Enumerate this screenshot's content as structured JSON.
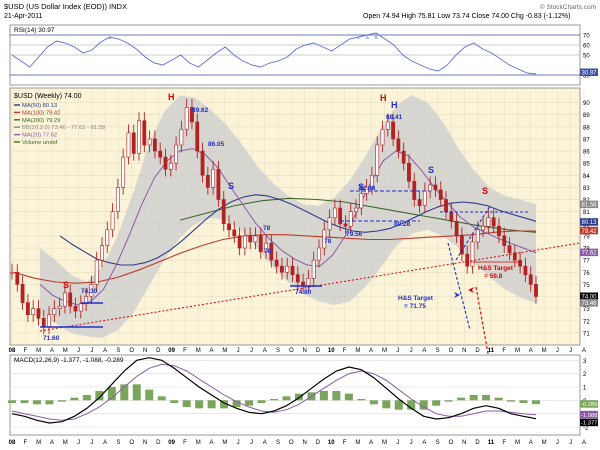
{
  "header": {
    "symbol_line": "$USD (US Dollar Index (EOD)) INDX",
    "date": "21-Apr-2011",
    "quote": "Open 74.94  High 75.81  Low 73.74  Close 74.00  Chg -0.83 (-1.12%)",
    "watermark": "© StockCharts.com"
  },
  "colors": {
    "price_bg": "#fbf4d9",
    "band_fill": "#c9c9cd",
    "price_bar": "#b22222",
    "ma50": "#2e3b8a",
    "ma100": "#c0392b",
    "ma200": "#3a6b2a",
    "ma20": "#8a5aa8",
    "rsi_line": "#5b6ed9",
    "rsi_fill": "#6f86c9",
    "macd_line": "#000000",
    "signal_line": "#8a5aa8",
    "hist": "#7aa65b",
    "annotation_red": "#e00000",
    "annotation_blue": "#1f2fd1"
  },
  "chart_data": [
    {
      "type": "line",
      "panel": "rsi",
      "legend": "RSI(14) 30.97",
      "y_ticks": [
        30,
        50,
        60,
        70
      ],
      "ylim": [
        20,
        80
      ],
      "current_value_label": "30.97",
      "series": [
        {
          "name": "RSI(14)",
          "values": [
            50,
            44,
            38,
            48,
            58,
            64,
            62,
            58,
            52,
            55,
            63,
            68,
            66,
            62,
            56,
            48,
            42,
            40,
            45,
            50,
            42,
            38,
            45,
            52,
            58,
            50,
            44,
            40,
            38,
            42,
            44,
            48,
            56,
            60,
            62,
            58,
            54,
            60,
            66,
            68,
            70,
            72,
            66,
            60,
            50,
            44,
            40,
            36,
            34,
            40,
            50,
            58,
            62,
            56,
            52,
            46,
            40,
            36,
            32,
            30.97
          ]
        }
      ]
    },
    {
      "type": "line",
      "panel": "price",
      "title": "$USD (Weekly) 74.00",
      "legend": [
        "MA(50) 80.13",
        "MA(100) 79.42",
        "MA(200) 79.29",
        "BB(20,2.0) 73.46 - 77.62 - 81.58",
        "MA(20) 77.62",
        "Volume undef"
      ],
      "y_ticks": [
        71,
        72,
        73,
        74,
        75,
        76,
        77,
        78,
        79,
        80,
        81,
        82,
        83,
        84,
        85,
        86,
        87,
        88,
        89,
        90
      ],
      "ylim": [
        70,
        91.2
      ],
      "x_tick_labels": [
        "08",
        "F",
        "M",
        "A",
        "M",
        "J",
        "J",
        "A",
        "S",
        "O",
        "N",
        "D",
        "09",
        "F",
        "M",
        "A",
        "M",
        "J",
        "J",
        "A",
        "S",
        "O",
        "N",
        "D",
        "10",
        "F",
        "M",
        "A",
        "M",
        "J",
        "J",
        "A",
        "S",
        "O",
        "N",
        "D",
        "11",
        "F",
        "M",
        "A",
        "M",
        "J",
        "J",
        "A"
      ],
      "current_value_labels": [
        "81.58",
        "80.13",
        "79.42",
        "77.62",
        "74.00",
        "73.46"
      ],
      "series": [
        {
          "name": "Price",
          "values": [
            76.0,
            75.0,
            73.5,
            72.5,
            73.0,
            72.2,
            71.5,
            72.5,
            73.0,
            73.2,
            74.3,
            73.2,
            72.8,
            73.4,
            74.0,
            75.0,
            77.0,
            78.2,
            79.5,
            81.0,
            83.0,
            85.5,
            87.5,
            85.8,
            88.5,
            86.5,
            87.0,
            86.0,
            85.5,
            84.5,
            85.0,
            86.5,
            87.8,
            89.6,
            88.4,
            86.0,
            84.0,
            83.0,
            84.5,
            82.0,
            80.0,
            79.5,
            79.0,
            78.0,
            79.0,
            78.5,
            79.0,
            77.7,
            78.4,
            77.0,
            76.5,
            76.0,
            76.5,
            75.8,
            75.2,
            74.9,
            75.5,
            77.0,
            78.0,
            79.5,
            80.5,
            81.3,
            80.0,
            79.8,
            81.0,
            81.3,
            82.5,
            83.0,
            84.0,
            86.5,
            87.8,
            88.4,
            87.0,
            86.0,
            85.0,
            83.5,
            82.0,
            81.5,
            82.7,
            83.2,
            82.8,
            82.0,
            81.0,
            80.2,
            79.0,
            77.5,
            76.5,
            78.5,
            79.5,
            79.8,
            80.5,
            79.8,
            79.0,
            78.2,
            77.6,
            77.0,
            76.5,
            75.8,
            75.0,
            74.0
          ]
        },
        {
          "name": "MA(50)",
          "values": [
            79,
            78.3,
            77.7,
            77.1,
            76.8,
            76.6,
            76.6,
            76.8,
            77.2,
            77.8,
            78.6,
            79.5,
            80.4,
            81.2,
            81.8,
            82.2,
            82.4,
            82.3,
            82.0,
            81.6,
            81.1,
            80.6,
            80.1,
            79.7,
            79.4,
            79.3,
            79.4,
            79.6,
            80,
            80.5,
            81,
            81.4,
            81.7,
            81.8,
            81.7,
            81.5,
            81.1,
            80.8,
            80.5,
            80.2
          ]
        },
        {
          "name": "MA(100)",
          "values": [
            76,
            75.5,
            75.2,
            75.1,
            75.2,
            75.6,
            76.2,
            76.9,
            77.6,
            78.2,
            78.7,
            79.0,
            79.1,
            79.1,
            79.0,
            78.9,
            78.8,
            78.7,
            78.7,
            78.8,
            78.9,
            79.0,
            79.1,
            79.3,
            79.4,
            79.4
          ]
        },
        {
          "name": "MA(200)",
          "values": [
            80.3,
            80.9,
            81.5,
            81.9,
            82.1,
            82.0,
            81.8,
            81.4,
            81.0,
            80.6,
            80.2,
            79.8,
            79.5,
            79.3
          ]
        },
        {
          "name": "MA(20)",
          "values": [
            75,
            74.1,
            73.6,
            73.3,
            73.6,
            74.6,
            76.6,
            79,
            81.6,
            83.8,
            85.2,
            86.0,
            86.2,
            85.7,
            84.6,
            83,
            81.5,
            80,
            78.8,
            77.8,
            77.1,
            76.6,
            76.5,
            77.4,
            79,
            81.2,
            83.4,
            85.2,
            86.0,
            85.6,
            84.4,
            83,
            81.8,
            80.6,
            79.8,
            79.3,
            78.8,
            78.4,
            78.0,
            77.6
          ]
        },
        {
          "name": "BB Upper",
          "values": [
            78,
            77,
            75.8,
            75.2,
            76.4,
            79,
            82.5,
            86.5,
            89.2,
            90.6,
            90.4,
            89.4,
            88.2,
            86.6,
            84.8,
            83.4,
            82.3,
            81.6,
            81.5,
            82.2,
            83.6,
            85.6,
            87.8,
            89.8,
            90.6,
            90.0,
            88.4,
            86.2,
            84.4,
            83.0,
            82.3,
            82.0,
            81.6
          ]
        },
        {
          "name": "BB Lower",
          "values": [
            72.5,
            71.8,
            71.0,
            70.7,
            70.6,
            71.2,
            72.6,
            74.8,
            77.0,
            78.8,
            80.0,
            80.5,
            80.3,
            79.4,
            78.0,
            76.5,
            75.2,
            74.2,
            73.6,
            73.3,
            73.6,
            74.8,
            76.4,
            78.2,
            79.2,
            79.5,
            79.0,
            78.0,
            76.8,
            75.6,
            74.6,
            73.9,
            73.46
          ]
        }
      ],
      "annotations": [
        {
          "text": "71.60",
          "type": "price_label"
        },
        {
          "text": "74.30",
          "type": "price_label"
        },
        {
          "text": "89.62",
          "type": "price_label"
        },
        {
          "text": "86.05",
          "type": "price_label"
        },
        {
          "text": "78",
          "type": "price_label"
        },
        {
          "text": "78",
          "type": "price_label"
        },
        {
          "text": "74.80",
          "type": "price_label"
        },
        {
          "text": "78",
          "type": "price_label"
        },
        {
          "text": "79.56",
          "type": "price_label"
        },
        {
          "text": "88.41",
          "type": "price_label"
        },
        {
          "text": "82.88",
          "type": "price_label"
        },
        {
          "text": "80.28",
          "type": "price_label"
        },
        {
          "text": "S",
          "type": "pattern"
        },
        {
          "text": "H",
          "type": "pattern"
        },
        {
          "text": "S",
          "type": "pattern"
        },
        {
          "text": "H",
          "type": "pattern"
        },
        {
          "text": "H",
          "type": "pattern"
        },
        {
          "text": "S",
          "type": "pattern"
        },
        {
          "text": "S",
          "type": "pattern"
        },
        {
          "text": "S",
          "type": "pattern"
        },
        {
          "text": "H&S Target = 71.75",
          "type": "target_blue"
        },
        {
          "text": "H&S Target = 59.8",
          "type": "target_red"
        }
      ]
    },
    {
      "type": "line",
      "panel": "macd",
      "legend": "MACD(12,26,9) -1.377, -1.088, -0.289",
      "y_ticks": [
        3,
        2,
        1,
        0,
        -1,
        -2
      ],
      "ylim": [
        -2.6,
        3.4
      ],
      "current_value_labels": [
        "-0.289",
        "-1.088",
        "-1.377"
      ],
      "series": [
        {
          "name": "MACD",
          "values": [
            -1.0,
            -1.2,
            -1.5,
            -1.7,
            -1.6,
            -1.2,
            -0.6,
            0.2,
            1.2,
            2.2,
            3.0,
            3.2,
            3.0,
            2.4,
            1.7,
            1.0,
            0.4,
            -0.2,
            -0.6,
            -0.9,
            -1.0,
            -0.8,
            -0.4,
            0.2,
            0.9,
            1.6,
            2.2,
            2.5,
            2.3,
            1.7,
            0.9,
            0.1,
            -0.6,
            -1.2,
            -1.4,
            -1.3,
            -1.0,
            -0.6,
            -0.4,
            -0.6,
            -1.0,
            -1.2,
            -1.377
          ]
        },
        {
          "name": "Signal",
          "values": [
            -0.8,
            -1.0,
            -1.2,
            -1.4,
            -1.5,
            -1.4,
            -1.0,
            -0.5,
            0.2,
            1.0,
            1.8,
            2.4,
            2.7,
            2.6,
            2.2,
            1.6,
            1.0,
            0.4,
            -0.1,
            -0.5,
            -0.8,
            -0.9,
            -0.7,
            -0.3,
            0.3,
            0.9,
            1.5,
            2.0,
            2.2,
            2.0,
            1.5,
            0.8,
            0.1,
            -0.5,
            -1.0,
            -1.2,
            -1.2,
            -1.0,
            -0.8,
            -0.8,
            -0.9,
            -1.0,
            -1.088
          ]
        },
        {
          "name": "Histogram",
          "values": [
            -0.2,
            -0.2,
            -0.3,
            -0.3,
            -0.1,
            0.2,
            0.4,
            0.7,
            1.0,
            1.2,
            1.2,
            0.8,
            0.3,
            -0.2,
            -0.5,
            -0.6,
            -0.6,
            -0.6,
            -0.5,
            -0.4,
            -0.2,
            0.1,
            0.3,
            0.5,
            0.6,
            0.7,
            0.7,
            0.5,
            0.1,
            -0.3,
            -0.6,
            -0.7,
            -0.7,
            -0.7,
            -0.4,
            -0.1,
            0.2,
            0.4,
            0.4,
            0.2,
            -0.1,
            -0.2,
            -0.289
          ]
        }
      ]
    }
  ]
}
